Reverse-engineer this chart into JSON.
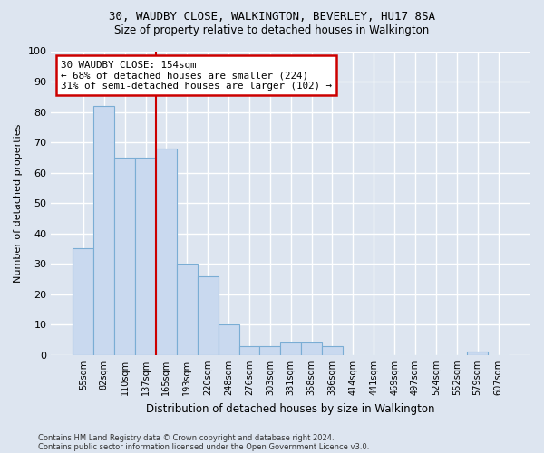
{
  "title1": "30, WAUDBY CLOSE, WALKINGTON, BEVERLEY, HU17 8SA",
  "title2": "Size of property relative to detached houses in Walkington",
  "xlabel": "Distribution of detached houses by size in Walkington",
  "ylabel": "Number of detached properties",
  "bar_labels": [
    "55sqm",
    "82sqm",
    "110sqm",
    "137sqm",
    "165sqm",
    "193sqm",
    "220sqm",
    "248sqm",
    "276sqm",
    "303sqm",
    "331sqm",
    "358sqm",
    "386sqm",
    "414sqm",
    "441sqm",
    "469sqm",
    "497sqm",
    "524sqm",
    "552sqm",
    "579sqm",
    "607sqm"
  ],
  "bar_values": [
    35,
    82,
    65,
    65,
    68,
    30,
    26,
    10,
    3,
    3,
    4,
    4,
    3,
    0,
    0,
    0,
    0,
    0,
    0,
    1,
    0
  ],
  "bar_color": "#c9d9ef",
  "bar_edge_color": "#7aadd4",
  "vline_x_index": 4,
  "vline_color": "#cc0000",
  "annotation_text": "30 WAUDBY CLOSE: 154sqm\n← 68% of detached houses are smaller (224)\n31% of semi-detached houses are larger (102) →",
  "annotation_box_color": "white",
  "annotation_box_edge": "#cc0000",
  "footnote1": "Contains HM Land Registry data © Crown copyright and database right 2024.",
  "footnote2": "Contains public sector information licensed under the Open Government Licence v3.0.",
  "ylim": [
    0,
    100
  ],
  "background_color": "#dde5f0",
  "grid_color": "white"
}
